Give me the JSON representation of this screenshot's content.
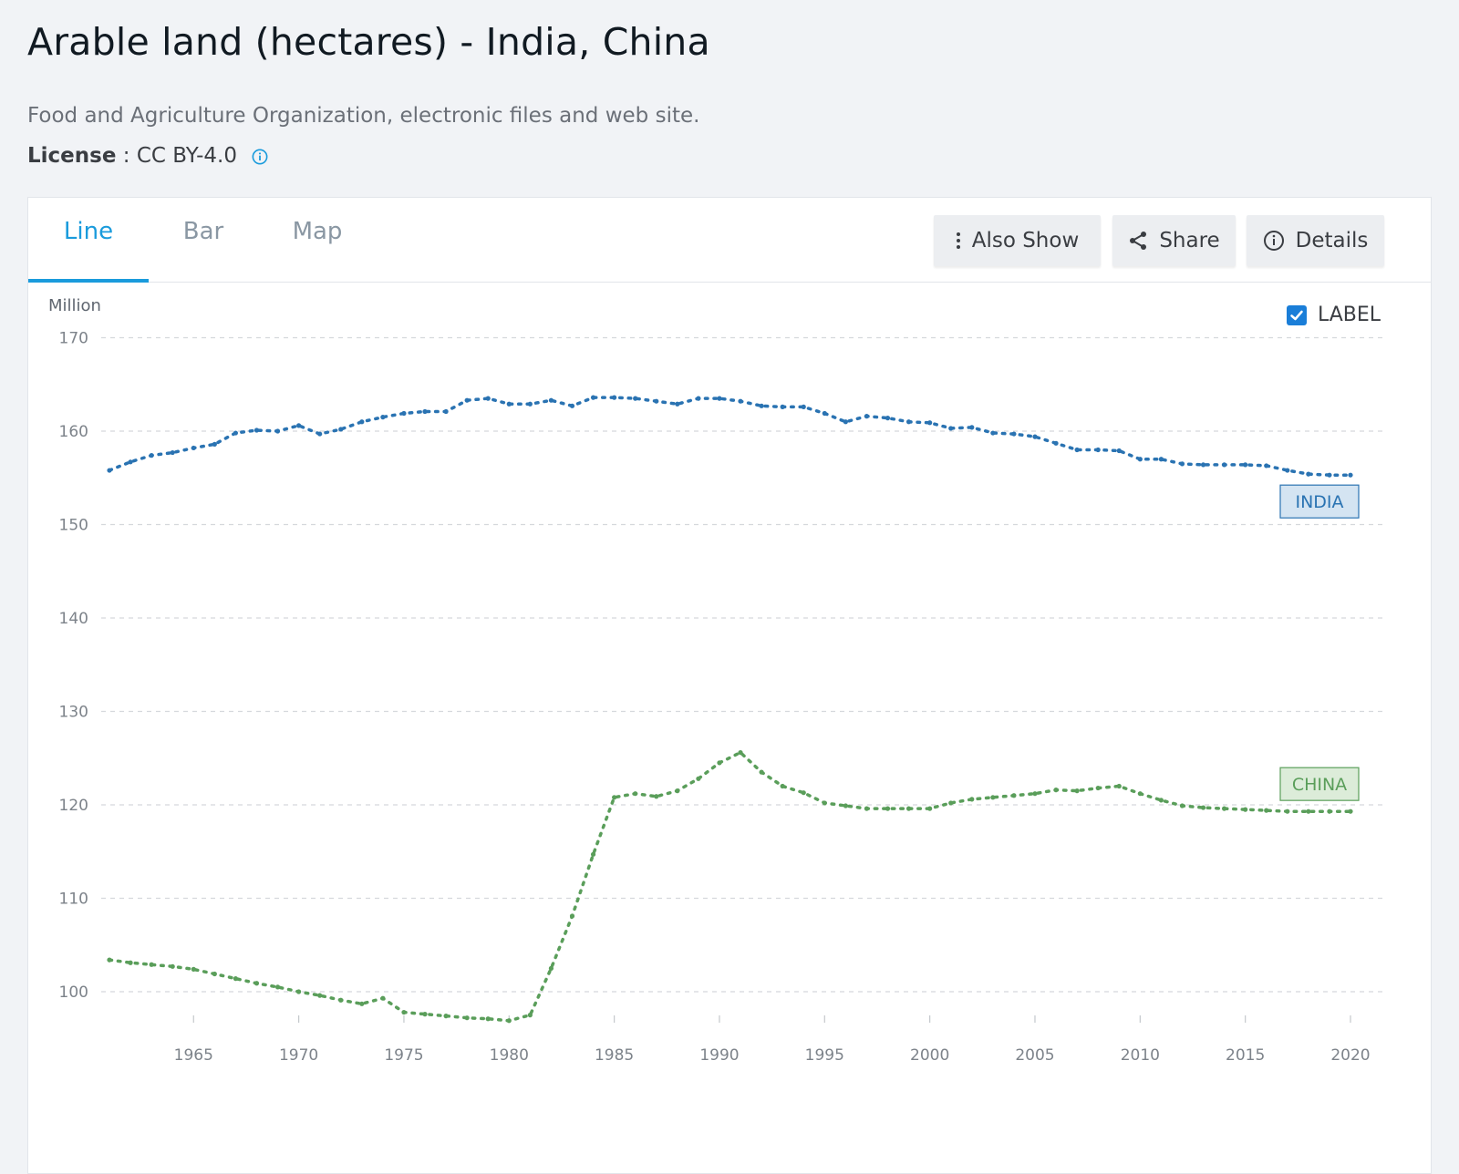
{
  "header": {
    "title": "Arable land (hectares) - India, China",
    "source": "Food and Agriculture Organization, electronic files and web site.",
    "license_label": "License",
    "license_sep": " : ",
    "license_value": "CC BY-4.0"
  },
  "tabs": [
    {
      "label": "Line",
      "active": true
    },
    {
      "label": "Bar",
      "active": false
    },
    {
      "label": "Map",
      "active": false
    }
  ],
  "toolbar": {
    "also_show": "Also Show",
    "share": "Share",
    "details": "Details"
  },
  "label_toggle": {
    "label": "LABEL",
    "checked": true
  },
  "colors": {
    "accent": "#1a9bdc",
    "india": "#2a73b2",
    "china": "#5a9e5a"
  },
  "chart_data": {
    "type": "line",
    "ylabel": "Million",
    "ylim": [
      95,
      170
    ],
    "yticks": [
      100,
      110,
      120,
      130,
      140,
      150,
      160,
      170
    ],
    "xlim": [
      1961,
      2020
    ],
    "xticks": [
      1965,
      1970,
      1975,
      1980,
      1985,
      1990,
      1995,
      2000,
      2005,
      2010,
      2015,
      2020
    ],
    "grid": true,
    "series": [
      {
        "name": "INDIA",
        "color": "#2a73b2",
        "x": [
          1961,
          1962,
          1963,
          1964,
          1965,
          1966,
          1967,
          1968,
          1969,
          1970,
          1971,
          1972,
          1973,
          1974,
          1975,
          1976,
          1977,
          1978,
          1979,
          1980,
          1981,
          1982,
          1983,
          1984,
          1985,
          1986,
          1987,
          1988,
          1989,
          1990,
          1991,
          1992,
          1993,
          1994,
          1995,
          1996,
          1997,
          1998,
          1999,
          2000,
          2001,
          2002,
          2003,
          2004,
          2005,
          2006,
          2007,
          2008,
          2009,
          2010,
          2011,
          2012,
          2013,
          2014,
          2015,
          2016,
          2017,
          2018,
          2019,
          2020
        ],
        "values": [
          155.8,
          156.7,
          157.4,
          157.7,
          158.2,
          158.6,
          159.8,
          160.1,
          160.0,
          160.6,
          159.7,
          160.2,
          161.0,
          161.5,
          161.9,
          162.1,
          162.1,
          163.3,
          163.5,
          162.9,
          162.9,
          163.3,
          162.7,
          163.6,
          163.6,
          163.5,
          163.2,
          162.9,
          163.5,
          163.5,
          163.2,
          162.7,
          162.6,
          162.6,
          161.9,
          161.0,
          161.6,
          161.4,
          161.0,
          160.9,
          160.3,
          160.4,
          159.8,
          159.7,
          159.4,
          158.7,
          158.0,
          158.0,
          157.9,
          157.0,
          157.0,
          156.5,
          156.4,
          156.4,
          156.4,
          156.3,
          155.8,
          155.4,
          155.3,
          155.3
        ]
      },
      {
        "name": "CHINA",
        "color": "#5a9e5a",
        "x": [
          1961,
          1962,
          1963,
          1964,
          1965,
          1966,
          1967,
          1968,
          1969,
          1970,
          1971,
          1972,
          1973,
          1974,
          1975,
          1976,
          1977,
          1978,
          1979,
          1980,
          1981,
          1982,
          1983,
          1984,
          1985,
          1986,
          1987,
          1988,
          1989,
          1990,
          1991,
          1992,
          1993,
          1994,
          1995,
          1996,
          1997,
          1998,
          1999,
          2000,
          2001,
          2002,
          2003,
          2004,
          2005,
          2006,
          2007,
          2008,
          2009,
          2010,
          2011,
          2012,
          2013,
          2014,
          2015,
          2016,
          2017,
          2018,
          2019,
          2020
        ],
        "values": [
          103.4,
          103.1,
          102.9,
          102.7,
          102.4,
          101.9,
          101.4,
          100.9,
          100.5,
          100.0,
          99.6,
          99.1,
          98.7,
          99.3,
          97.8,
          97.6,
          97.4,
          97.2,
          97.1,
          96.9,
          97.5,
          102.5,
          108.1,
          114.7,
          120.8,
          121.2,
          120.9,
          121.5,
          122.8,
          124.5,
          125.6,
          123.5,
          122.0,
          121.3,
          120.2,
          119.9,
          119.6,
          119.6,
          119.6,
          119.6,
          120.2,
          120.6,
          120.8,
          121.0,
          121.2,
          121.6,
          121.5,
          121.8,
          122.0,
          121.2,
          120.5,
          119.9,
          119.7,
          119.6,
          119.5,
          119.4,
          119.3,
          119.3,
          119.3,
          119.3
        ]
      }
    ]
  }
}
